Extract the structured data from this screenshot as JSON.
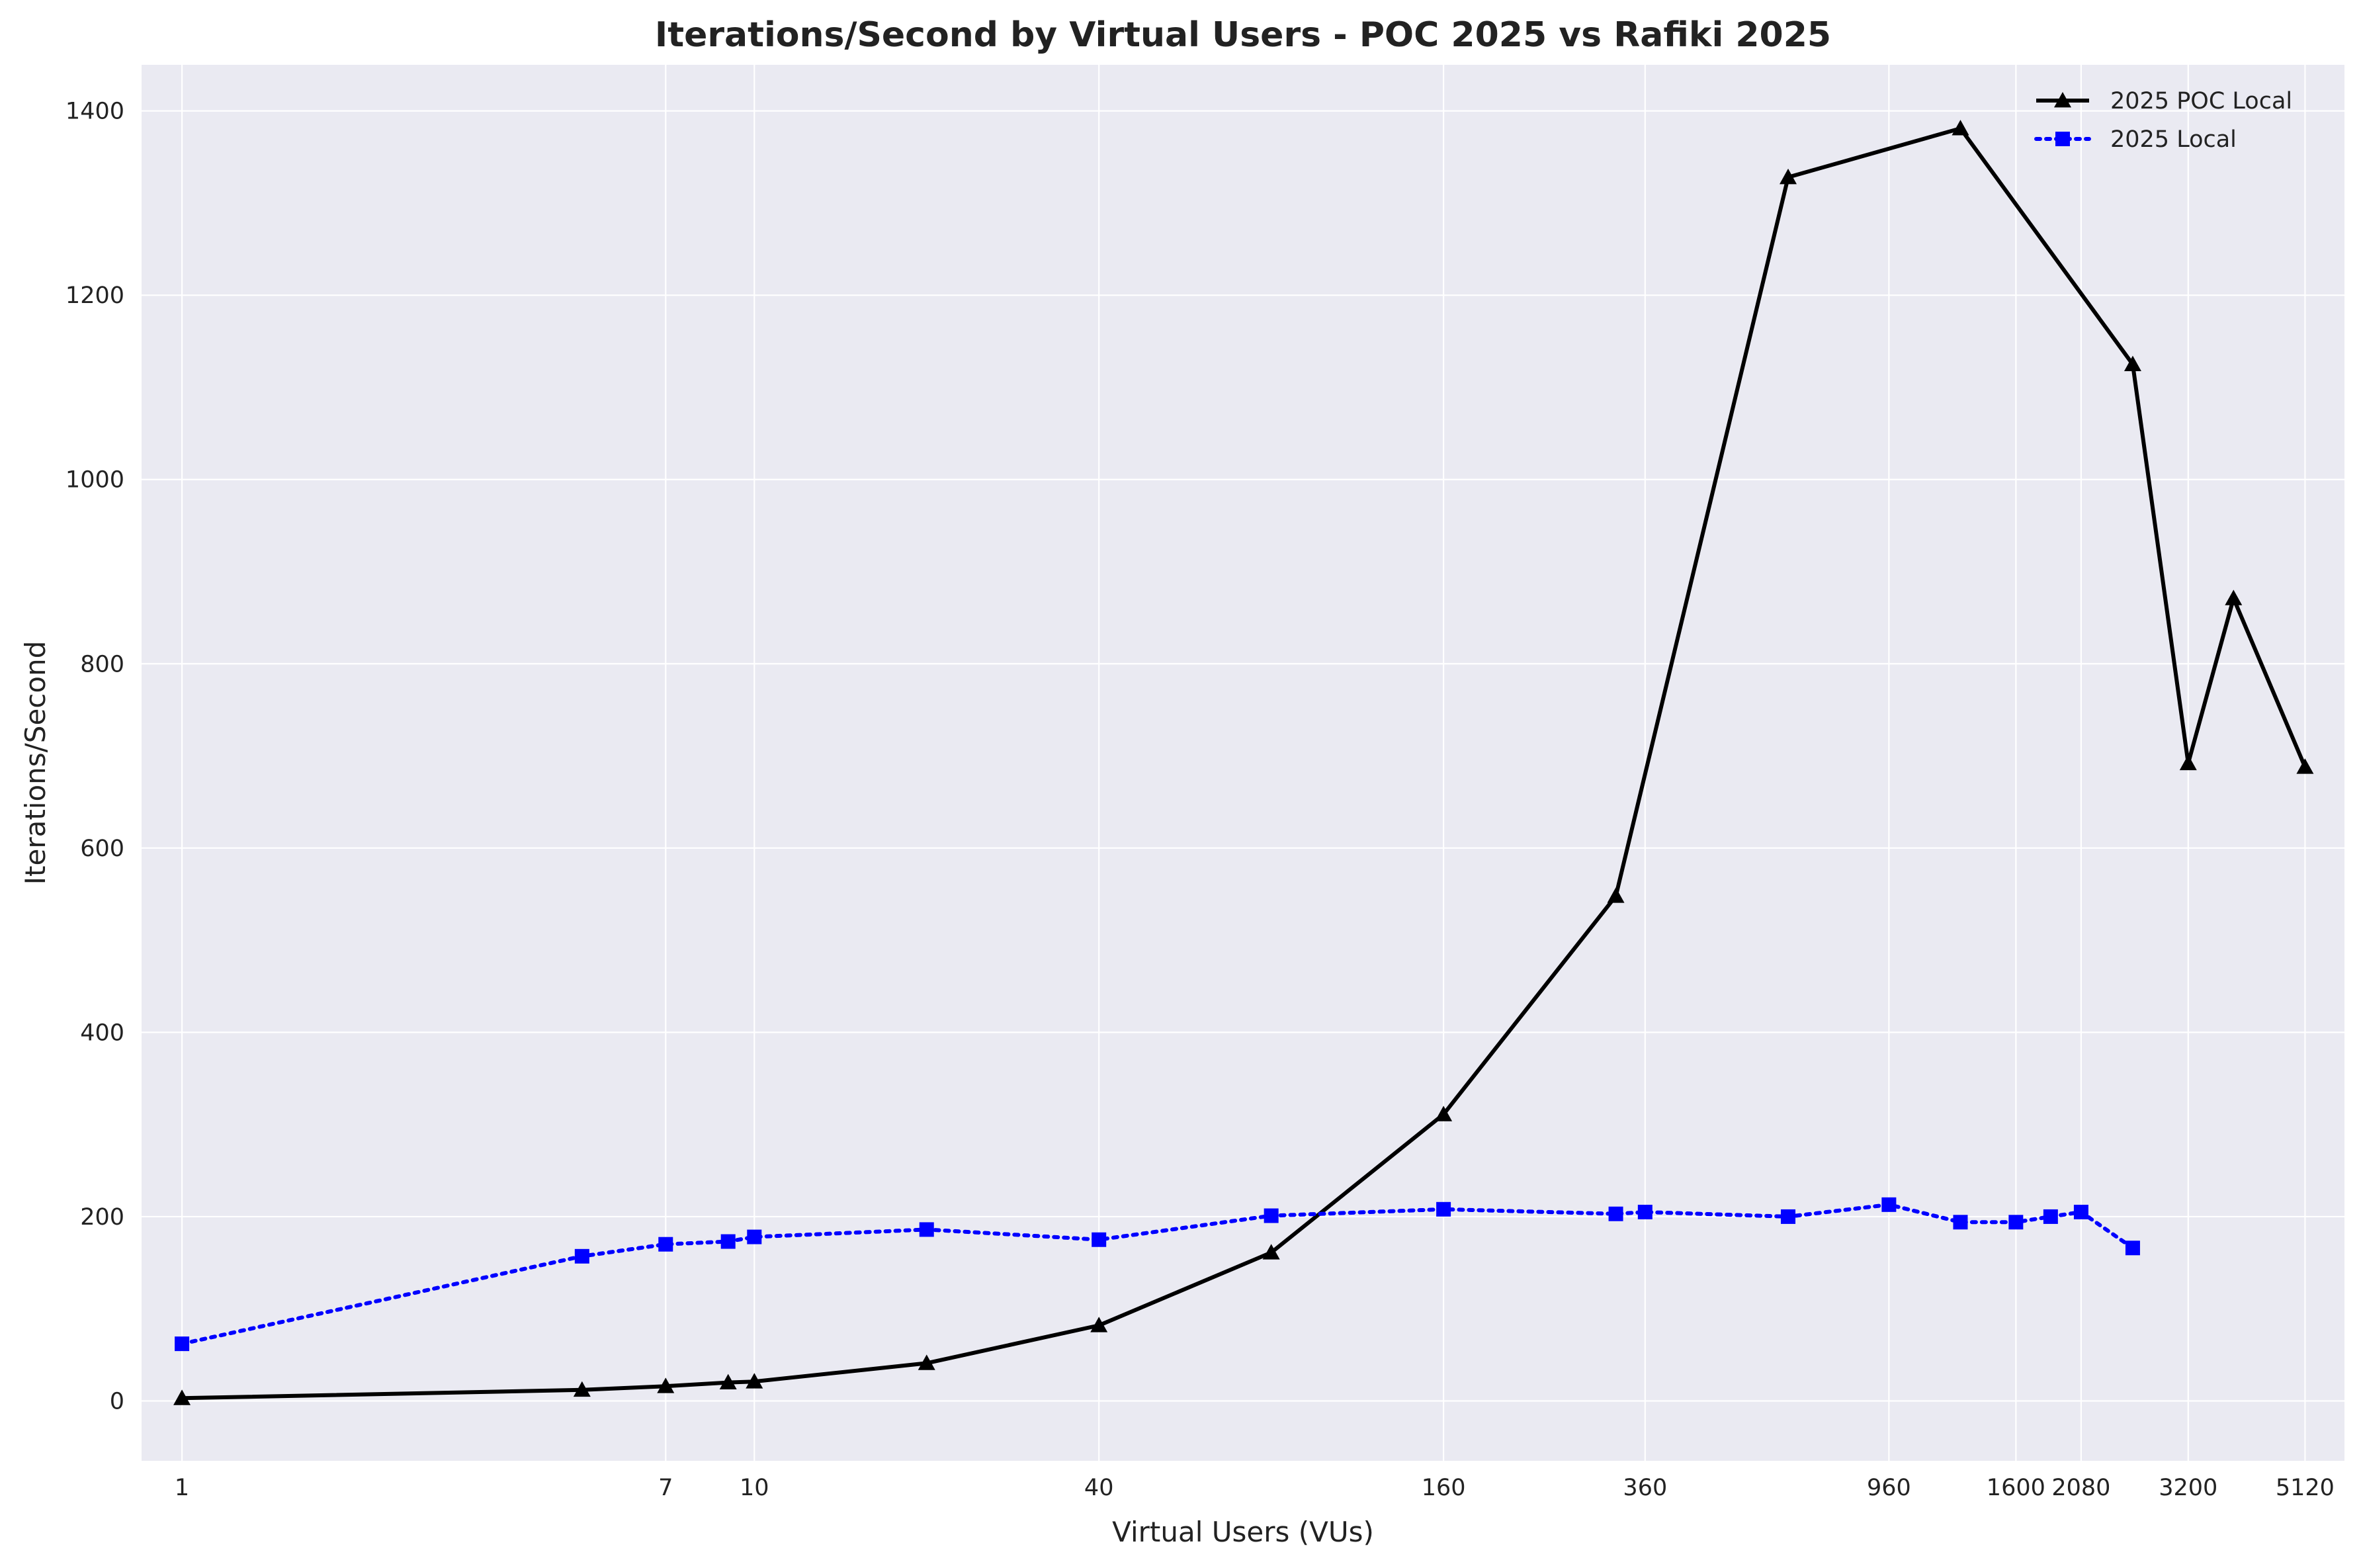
{
  "chart_data": {
    "type": "line",
    "title": "Iterations/Second by Virtual Users - POC 2025 vs Rafiki 2025",
    "xlabel": "Virtual Users (VUs)",
    "ylabel": "Iterations/Second",
    "x_scale": "log",
    "xlim": [
      0.85,
      6000
    ],
    "ylim": [
      -65,
      1450
    ],
    "x_ticks": [
      1,
      7,
      10,
      40,
      160,
      360,
      960,
      1600,
      2080,
      3200,
      5120
    ],
    "x_tick_labels": [
      "1",
      "7",
      "10",
      "40",
      "160",
      "360",
      "960",
      "1600",
      "2080",
      "3200",
      "5120"
    ],
    "y_ticks": [
      0,
      200,
      400,
      600,
      800,
      1000,
      1200,
      1400
    ],
    "y_tick_labels": [
      "0",
      "200",
      "400",
      "600",
      "800",
      "1000",
      "1200",
      "1400"
    ],
    "grid": true,
    "legend_position": "top-right",
    "background": "#eaeaf2",
    "series": [
      {
        "name": "2025 POC Local",
        "color": "#000000",
        "line_style": "solid",
        "marker": "triangle",
        "x": [
          1,
          5,
          7,
          9,
          10,
          20,
          40,
          80,
          160,
          320,
          640,
          1280,
          2560,
          3200,
          3840,
          5120
        ],
        "y": [
          3,
          12,
          16,
          20,
          21,
          41,
          82,
          161,
          311,
          548,
          1328,
          1381,
          1125,
          692,
          871,
          688
        ]
      },
      {
        "name": "2025 Local",
        "color": "#0000ff",
        "line_style": "dotted",
        "marker": "square",
        "x": [
          1,
          5,
          7,
          9,
          10,
          20,
          40,
          80,
          160,
          320,
          360,
          640,
          960,
          1280,
          1600,
          1840,
          2080,
          2560
        ],
        "y": [
          62,
          157,
          170,
          173,
          178,
          186,
          175,
          201,
          208,
          203,
          205,
          200,
          213,
          194,
          194,
          200,
          205,
          166
        ]
      }
    ]
  }
}
